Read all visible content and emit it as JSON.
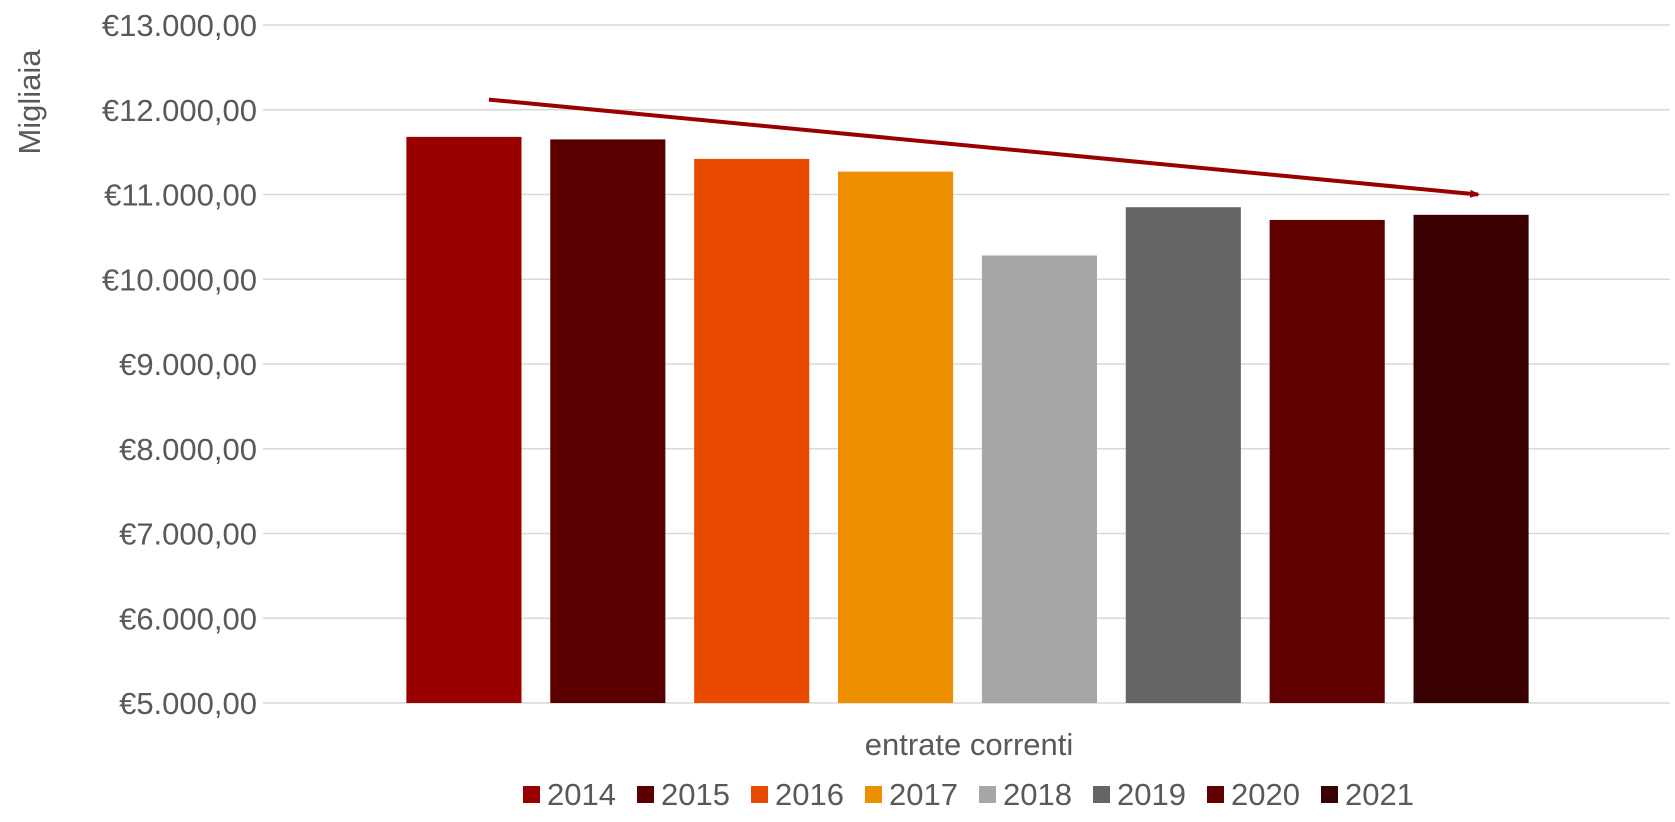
{
  "chart_data": {
    "type": "bar",
    "ylabel": "Migliaia",
    "xlabel": "entrate correnti",
    "categories": [
      "entrate correnti"
    ],
    "ylim": [
      5000,
      13000
    ],
    "yticks": [
      {
        "value": 5000,
        "label": "€5.000,00"
      },
      {
        "value": 6000,
        "label": "€6.000,00"
      },
      {
        "value": 7000,
        "label": "€7.000,00"
      },
      {
        "value": 8000,
        "label": "€8.000,00"
      },
      {
        "value": 9000,
        "label": "€9.000,00"
      },
      {
        "value": 10000,
        "label": "€10.000,00"
      },
      {
        "value": 11000,
        "label": "€11.000,00"
      },
      {
        "value": 12000,
        "label": "€12.000,00"
      },
      {
        "value": 13000,
        "label": "€13.000,00"
      }
    ],
    "grid": true,
    "legend_position": "bottom",
    "series": [
      {
        "name": "2014",
        "values": [
          11680
        ],
        "color": "#990000"
      },
      {
        "name": "2015",
        "values": [
          11650
        ],
        "color": "#5a0000"
      },
      {
        "name": "2016",
        "values": [
          11420
        ],
        "color": "#e84a00"
      },
      {
        "name": "2017",
        "values": [
          11270
        ],
        "color": "#ee8f00"
      },
      {
        "name": "2018",
        "values": [
          10280
        ],
        "color": "#a6a6a6"
      },
      {
        "name": "2019",
        "values": [
          10850
        ],
        "color": "#666666"
      },
      {
        "name": "2020",
        "values": [
          10700
        ],
        "color": "#600000"
      },
      {
        "name": "2021",
        "values": [
          10760
        ],
        "color": "#380000"
      }
    ],
    "annotations": [
      {
        "type": "trend-arrow",
        "from_value": 12120,
        "to_value": 11000,
        "color": "#990000"
      }
    ]
  }
}
